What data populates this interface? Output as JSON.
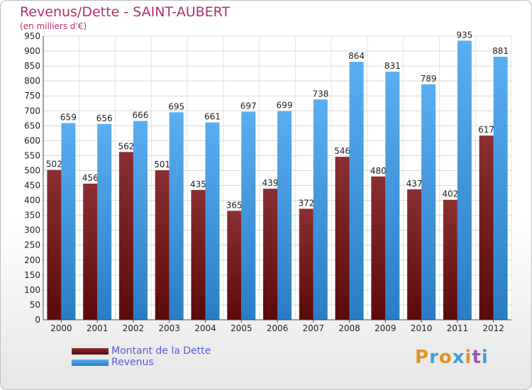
{
  "header": {
    "title": "Revenus/Dette - SAINT-AUBERT",
    "subtitle": "(en milliers d'€)"
  },
  "logo": {
    "text": "Proxiti"
  },
  "colors": {
    "dette_dark": "#5a0a0a",
    "dette_light": "#8a2f33",
    "revenus_dark": "#2a7dc4",
    "revenus_light": "#5aaef0",
    "logo_letters": [
      "#e0902a",
      "#3aa0d8",
      "#e0902a",
      "#3aa0d8",
      "#e0902a",
      "#9a5ab0",
      "#3aa0d8"
    ]
  },
  "chart_data": {
    "type": "bar",
    "categories": [
      "2000",
      "2001",
      "2002",
      "2003",
      "2004",
      "2005",
      "2006",
      "2007",
      "2008",
      "2009",
      "2010",
      "2011",
      "2012"
    ],
    "series": [
      {
        "name": "Montant de la Dette",
        "values": [
          502,
          456,
          562,
          501,
          435,
          365,
          439,
          372,
          546,
          480,
          437,
          402,
          617
        ]
      },
      {
        "name": "Revenus",
        "values": [
          659,
          656,
          666,
          695,
          661,
          697,
          699,
          738,
          864,
          831,
          789,
          935,
          881
        ]
      }
    ],
    "ylim": [
      0,
      950
    ],
    "yticks": [
      "0",
      "50",
      "100",
      "150",
      "200",
      "250",
      "300",
      "350",
      "400",
      "450",
      "500",
      "550",
      "600",
      "650",
      "700",
      "750",
      "800",
      "850",
      "900",
      "950"
    ],
    "grid": true,
    "legend_position": "bottom-left"
  }
}
